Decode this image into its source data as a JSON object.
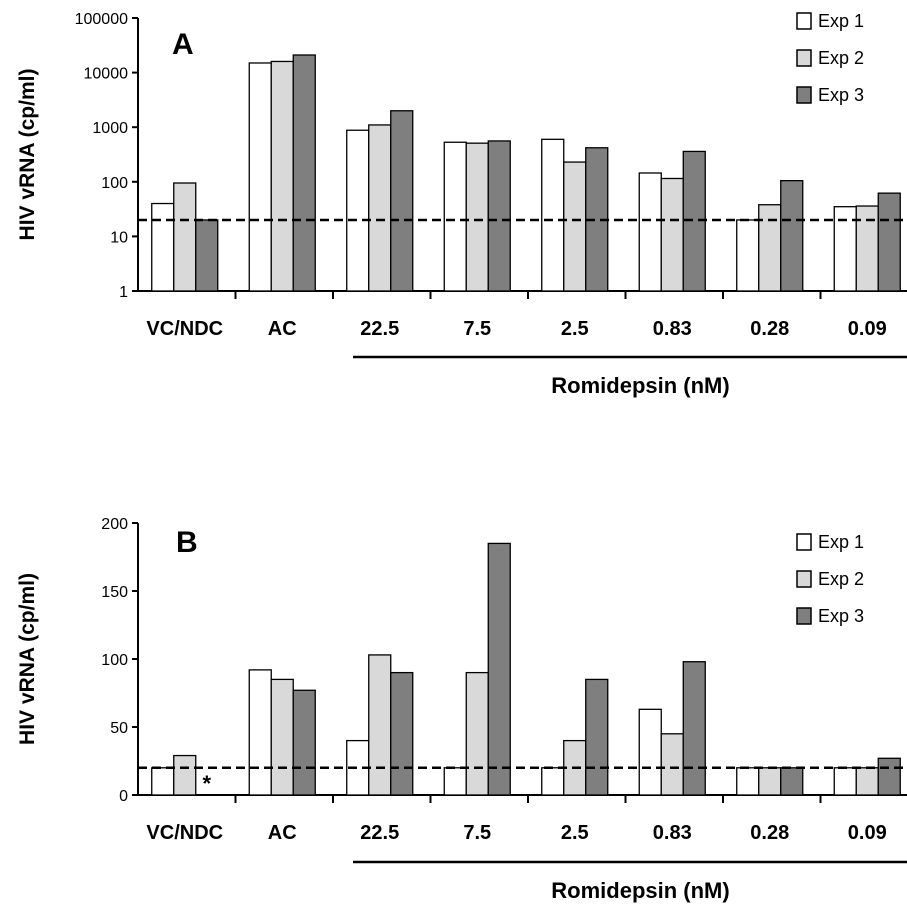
{
  "colors": {
    "exp1": "#ffffff",
    "exp2": "#d9d9d9",
    "exp3": "#7f7f7f",
    "stroke": "#000000"
  },
  "chart_data": [
    {
      "type": "bar",
      "panel": "A",
      "scale": "log",
      "title": "",
      "ylabel": "HIV vRNA (cp/ml)",
      "xlabel": "",
      "group_label": "Romidepsin (nM)",
      "group_span": [
        "22.5",
        "0.09"
      ],
      "categories": [
        "VC/NDC",
        "AC",
        "22.5",
        "7.5",
        "2.5",
        "0.83",
        "0.28",
        "0.09"
      ],
      "ylim": [
        1,
        100000
      ],
      "yticks": [
        "1",
        "10",
        "100",
        "1000",
        "10000",
        "100000"
      ],
      "threshold": 20,
      "threshold_style": "dashed",
      "legend_position": "top-right",
      "series": [
        {
          "name": "Exp 1",
          "color": "#ffffff",
          "values": [
            40,
            15000,
            880,
            530,
            600,
            145,
            20,
            35
          ]
        },
        {
          "name": "Exp 2",
          "color": "#d9d9d9",
          "values": [
            95,
            16000,
            1100,
            510,
            230,
            115,
            38,
            36
          ]
        },
        {
          "name": "Exp 3",
          "color": "#7f7f7f",
          "values": [
            20,
            21000,
            2000,
            560,
            420,
            360,
            105,
            62
          ]
        }
      ],
      "annotations": []
    },
    {
      "type": "bar",
      "panel": "B",
      "scale": "linear",
      "title": "",
      "ylabel": "HIV vRNA (cp/ml)",
      "xlabel": "",
      "group_label": "Romidepsin (nM)",
      "group_span": [
        "22.5",
        "0.09"
      ],
      "categories": [
        "VC/NDC",
        "AC",
        "22.5",
        "7.5",
        "2.5",
        "0.83",
        "0.28",
        "0.09"
      ],
      "ylim": [
        0,
        200
      ],
      "yticks": [
        "0",
        "50",
        "100",
        "150",
        "200"
      ],
      "threshold": 20,
      "threshold_style": "dashed",
      "legend_position": "top-right",
      "series": [
        {
          "name": "Exp 1",
          "color": "#ffffff",
          "values": [
            20,
            92,
            40,
            20,
            20,
            63,
            20,
            20
          ]
        },
        {
          "name": "Exp 2",
          "color": "#d9d9d9",
          "values": [
            29,
            85,
            103,
            90,
            40,
            45,
            20,
            20
          ]
        },
        {
          "name": "Exp 3",
          "color": "#7f7f7f",
          "values": [
            null,
            77,
            90,
            185,
            85,
            98,
            20,
            27
          ]
        }
      ],
      "annotations": [
        {
          "text": "*",
          "category": "VC/NDC",
          "series": "Exp 3"
        }
      ]
    }
  ]
}
